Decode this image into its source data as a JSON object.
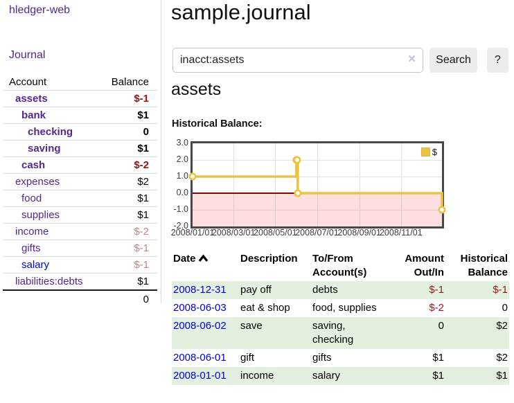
{
  "sidebar": {
    "brand": "hledger-web",
    "nav": {
      "journal_label": "Journal"
    },
    "table": {
      "account_header": "Account",
      "balance_header": "Balance"
    },
    "accounts": [
      {
        "name": "assets",
        "depth": 1,
        "bold": true,
        "balance": "$-1",
        "amt": "neg"
      },
      {
        "name": "bank",
        "depth": 2,
        "bold": true,
        "balance": "$1",
        "amt": "pos"
      },
      {
        "name": "checking",
        "depth": 3,
        "bold": true,
        "balance": "0",
        "amt": "pos"
      },
      {
        "name": "saving",
        "depth": 3,
        "bold": true,
        "balance": "$1",
        "amt": "pos"
      },
      {
        "name": "cash",
        "depth": 2,
        "bold": true,
        "balance": "$-2",
        "amt": "neg"
      },
      {
        "name": "expenses",
        "depth": 1,
        "bold": false,
        "balance": "$2",
        "amt": "pos"
      },
      {
        "name": "food",
        "depth": 2,
        "bold": false,
        "balance": "$1",
        "amt": "pos"
      },
      {
        "name": "supplies",
        "depth": 2,
        "bold": false,
        "balance": "$1",
        "amt": "pos"
      },
      {
        "name": "income",
        "depth": 1,
        "bold": false,
        "balance": "$-2",
        "amt": "negmuted"
      },
      {
        "name": "gifts",
        "depth": 2,
        "bold": false,
        "balance": "$-1",
        "amt": "negmuted"
      },
      {
        "name": "salary",
        "depth": 2,
        "bold": false,
        "balance": "$-1",
        "amt": "negmuted",
        "link": "blue"
      },
      {
        "name": "liabilities:debts",
        "depth": 1,
        "bold": false,
        "balance": "$1",
        "amt": "pos"
      }
    ],
    "total": "0"
  },
  "header": {
    "title": "sample.journal"
  },
  "search": {
    "value": "inacct:assets",
    "clear_icon": "×",
    "button_label": "Search",
    "help_label": "?"
  },
  "account_page": {
    "heading": "assets",
    "chart_label": "Historical Balance:"
  },
  "chart_data": {
    "type": "line",
    "title": "Historical Balance:",
    "step": true,
    "series": [
      {
        "name": "$",
        "color": "#EDC240",
        "points": [
          [
            "2008/01/01",
            1
          ],
          [
            "2008/06/01",
            2
          ],
          [
            "2008/06/02",
            2
          ],
          [
            "2008/06/03",
            0
          ],
          [
            "2008/12/31",
            -1
          ]
        ]
      }
    ],
    "xlim": [
      "2008/01/01",
      "2008/12/31"
    ],
    "ylim": [
      -2,
      3
    ],
    "xticks": [
      "2008/01/01",
      "2008/03/01",
      "2008/05/01",
      "2008/07/01",
      "2008/09/01",
      "2008/11/01"
    ],
    "ytick_values": [
      3,
      2,
      1,
      0,
      -1,
      -2
    ],
    "ytick_labels": [
      "3.0",
      "2.0",
      "1.0",
      "0.0",
      "-1.0",
      "-2.0"
    ],
    "grid": true,
    "legend_position": "top-right",
    "negative_region_color": "rgba(255,110,110,0.22)",
    "zero_line_color": "#8b0000"
  },
  "register": {
    "headers": {
      "date": "Date",
      "description": "Description",
      "accounts": "To/From Account(s)",
      "amount": "Amount Out/In",
      "balance": "Historical Balance"
    },
    "sort_icon": "chevron-up",
    "rows": [
      {
        "date": "2008-12-31",
        "description": "pay off",
        "accounts": "debts",
        "amount": "$-1",
        "balance": "$-1"
      },
      {
        "date": "2008-06-03",
        "description": "eat & shop",
        "accounts": "food, supplies",
        "amount": "$-2",
        "balance": "0"
      },
      {
        "date": "2008-06-02",
        "description": "save",
        "accounts": "saving, checking",
        "amount": "0",
        "balance": "$2"
      },
      {
        "date": "2008-06-01",
        "description": "gift",
        "accounts": "gifts",
        "amount": "$1",
        "balance": "$2"
      },
      {
        "date": "2008-01-01",
        "description": "income",
        "accounts": "salary",
        "amount": "$1",
        "balance": "$1"
      }
    ]
  },
  "colors": {
    "accent_purple": "#54278e",
    "link_blue": "#0000dd",
    "negative_red": "#9a1616",
    "negative_muted": "#c08585",
    "series_yellow": "#EDC240",
    "row_green": "#e4f0df",
    "zero_line_red": "#8b0000"
  }
}
